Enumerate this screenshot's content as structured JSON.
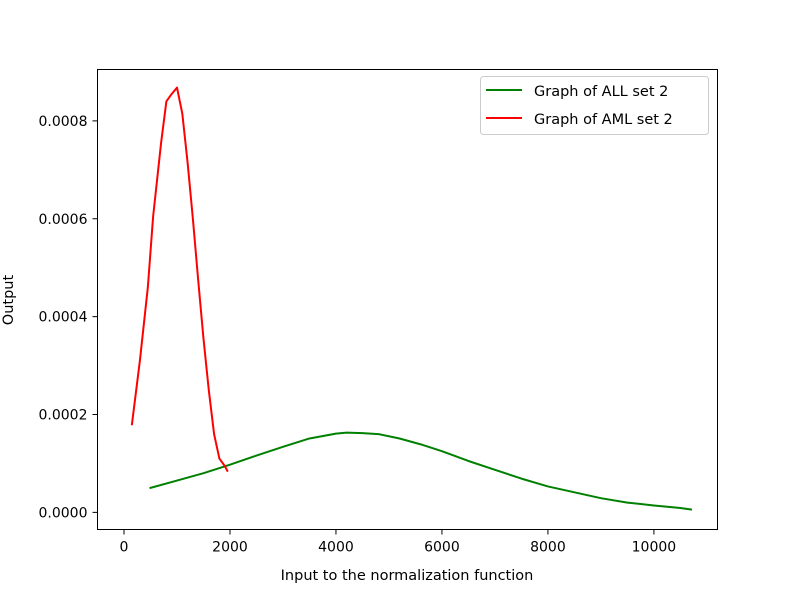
{
  "chart_data": {
    "type": "line",
    "title": "",
    "xlabel": "Input to  the normalization function",
    "ylabel": "Output",
    "xlim": [
      -500,
      11200
    ],
    "ylim": [
      -3.5e-05,
      0.000905
    ],
    "xticks": [
      0,
      2000,
      4000,
      6000,
      8000,
      10000
    ],
    "xtick_labels": [
      "0",
      "2000",
      "4000",
      "6000",
      "8000",
      "10000"
    ],
    "yticks": [
      0,
      0.0002,
      0.0004,
      0.0006,
      0.0008
    ],
    "ytick_labels": [
      "0.0000",
      "0.0002",
      "0.0004",
      "0.0006",
      "0.0008"
    ],
    "grid": false,
    "legend_position": "top-right",
    "series": [
      {
        "name": "Graph of ALL set 2",
        "color": "#008000",
        "x": [
          500,
          1000,
          1500,
          2000,
          2500,
          3000,
          3500,
          4000,
          4200,
          4500,
          4800,
          5200,
          5600,
          6000,
          6500,
          7000,
          7500,
          8000,
          8500,
          9000,
          9500,
          10000,
          10500,
          10700
        ],
        "y": [
          5e-05,
          6.5e-05,
          8e-05,
          9.75e-05,
          0.000116,
          0.000134,
          0.000151,
          0.000161,
          0.000163,
          0.000162,
          0.00016,
          0.000151,
          0.000139,
          0.000125,
          0.000105,
          8.7e-05,
          6.9e-05,
          5.3e-05,
          4.1e-05,
          2.9e-05,
          2e-05,
          1.4e-05,
          9e-06,
          6e-06
        ]
      },
      {
        "name": "Graph of AML set 2",
        "color": "#ff0000",
        "x": [
          150,
          300,
          450,
          550,
          700,
          800,
          900,
          1000,
          1100,
          1200,
          1300,
          1400,
          1500,
          1600,
          1700,
          1800,
          1900,
          1950
        ],
        "y": [
          0.00018,
          0.00031,
          0.00046,
          0.000605,
          0.000755,
          0.00084,
          0.000855,
          0.000868,
          0.000815,
          0.000715,
          0.0006,
          0.000475,
          0.000355,
          0.00025,
          0.00016,
          0.00011,
          9.5e-05,
          8.5e-05
        ]
      }
    ]
  }
}
